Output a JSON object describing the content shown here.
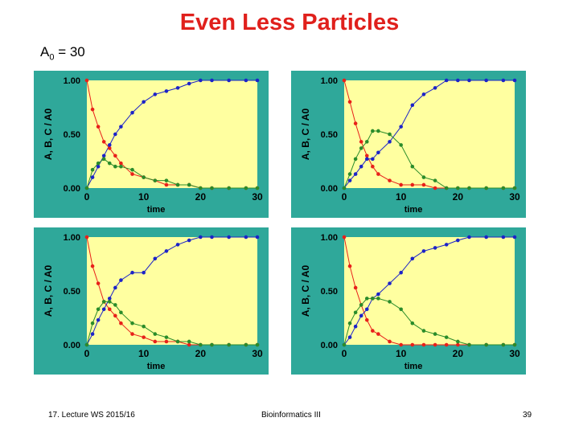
{
  "slide": {
    "title": "Even Less Particles",
    "subtitle_main": "A",
    "subtitle_sub": "0",
    "subtitle_tail": " = 30",
    "footer_left": "17. Lecture WS 2015/16",
    "footer_center": "Bioinformatics III",
    "footer_right": "39"
  },
  "colors": {
    "panel_bg": "#2fa89a",
    "plot_bg": "#ffffa0",
    "A": "#e8201a",
    "B": "#1c23c8",
    "C": "#2a8c2a",
    "axis_text": "#000000"
  },
  "chart_data": [
    {
      "type": "scatter",
      "ylabel": "A, B, C / A0",
      "xlabel": "time",
      "xlim": [
        0,
        30
      ],
      "ylim": [
        0,
        1
      ],
      "x_ticks": [
        "0",
        "10",
        "20",
        "30"
      ],
      "y_ticks": [
        "0.00",
        "0.50",
        "1.00"
      ],
      "series": [
        {
          "name": "A",
          "x": [
            0,
            1,
            2,
            3,
            4,
            5,
            6,
            8,
            10,
            12,
            14,
            16,
            18,
            20,
            22,
            25,
            28,
            30
          ],
          "values": [
            1.0,
            0.73,
            0.57,
            0.43,
            0.37,
            0.3,
            0.23,
            0.13,
            0.1,
            0.07,
            0.03,
            0.03,
            0.03,
            0.0,
            0.0,
            0.0,
            0.0,
            0.0
          ]
        },
        {
          "name": "B",
          "x": [
            0,
            1,
            2,
            3,
            4,
            5,
            6,
            8,
            10,
            12,
            14,
            16,
            18,
            20,
            22,
            25,
            28,
            30
          ],
          "values": [
            0.0,
            0.1,
            0.2,
            0.3,
            0.4,
            0.5,
            0.57,
            0.7,
            0.8,
            0.87,
            0.9,
            0.93,
            0.97,
            1.0,
            1.0,
            1.0,
            1.0,
            1.0
          ]
        },
        {
          "name": "C",
          "x": [
            0,
            1,
            2,
            3,
            4,
            5,
            6,
            8,
            10,
            12,
            14,
            16,
            18,
            20,
            22,
            25,
            28,
            30
          ],
          "values": [
            0.0,
            0.17,
            0.23,
            0.27,
            0.23,
            0.2,
            0.2,
            0.17,
            0.1,
            0.07,
            0.07,
            0.03,
            0.03,
            0.0,
            0.0,
            0.0,
            0.0,
            0.0
          ]
        }
      ],
      "theory_curves": true
    },
    {
      "type": "scatter",
      "ylabel": "A, B, C / A0",
      "xlabel": "time",
      "xlim": [
        0,
        30
      ],
      "ylim": [
        0,
        1
      ],
      "x_ticks": [
        "0",
        "10",
        "20",
        "30"
      ],
      "y_ticks": [
        "0.00",
        "0.50",
        "1.00"
      ],
      "series": [
        {
          "name": "A",
          "x": [
            0,
            1,
            2,
            3,
            4,
            5,
            6,
            8,
            10,
            12,
            14,
            16,
            18,
            20,
            22,
            25,
            28,
            30
          ],
          "values": [
            1.0,
            0.8,
            0.6,
            0.43,
            0.3,
            0.2,
            0.13,
            0.07,
            0.03,
            0.03,
            0.03,
            0.0,
            0.0,
            0.0,
            0.0,
            0.0,
            0.0,
            0.0
          ]
        },
        {
          "name": "B",
          "x": [
            0,
            1,
            2,
            3,
            4,
            5,
            6,
            8,
            10,
            12,
            14,
            16,
            18,
            20,
            22,
            25,
            28,
            30
          ],
          "values": [
            0.0,
            0.07,
            0.13,
            0.2,
            0.27,
            0.27,
            0.33,
            0.43,
            0.57,
            0.77,
            0.87,
            0.93,
            1.0,
            1.0,
            1.0,
            1.0,
            1.0,
            1.0
          ]
        },
        {
          "name": "C",
          "x": [
            0,
            1,
            2,
            3,
            4,
            5,
            6,
            8,
            10,
            12,
            14,
            16,
            18,
            20,
            22,
            25,
            28,
            30
          ],
          "values": [
            0.0,
            0.13,
            0.27,
            0.37,
            0.43,
            0.53,
            0.53,
            0.5,
            0.4,
            0.2,
            0.1,
            0.07,
            0.0,
            0.0,
            0.0,
            0.0,
            0.0,
            0.0
          ]
        }
      ],
      "theory_curves": true
    },
    {
      "type": "scatter",
      "ylabel": "A, B, C / A0",
      "xlabel": "time",
      "xlim": [
        0,
        30
      ],
      "ylim": [
        0,
        1
      ],
      "x_ticks": [
        "0",
        "10",
        "20",
        "30"
      ],
      "y_ticks": [
        "0.00",
        "0.50",
        "1.00"
      ],
      "series": [
        {
          "name": "A",
          "x": [
            0,
            1,
            2,
            3,
            4,
            5,
            6,
            8,
            10,
            12,
            14,
            16,
            18,
            20,
            22,
            25,
            28,
            30
          ],
          "values": [
            1.0,
            0.73,
            0.57,
            0.4,
            0.33,
            0.27,
            0.2,
            0.1,
            0.07,
            0.03,
            0.03,
            0.03,
            0.0,
            0.0,
            0.0,
            0.0,
            0.0,
            0.0
          ]
        },
        {
          "name": "B",
          "x": [
            0,
            1,
            2,
            3,
            4,
            5,
            6,
            8,
            10,
            12,
            14,
            16,
            18,
            20,
            22,
            25,
            28,
            30
          ],
          "values": [
            0.0,
            0.1,
            0.23,
            0.33,
            0.43,
            0.53,
            0.6,
            0.67,
            0.67,
            0.8,
            0.87,
            0.93,
            0.97,
            1.0,
            1.0,
            1.0,
            1.0,
            1.0
          ]
        },
        {
          "name": "C",
          "x": [
            0,
            1,
            2,
            3,
            4,
            5,
            6,
            8,
            10,
            12,
            14,
            16,
            18,
            20,
            22,
            25,
            28,
            30
          ],
          "values": [
            0.0,
            0.2,
            0.33,
            0.4,
            0.4,
            0.37,
            0.3,
            0.2,
            0.17,
            0.1,
            0.07,
            0.03,
            0.03,
            0.0,
            0.0,
            0.0,
            0.0,
            0.0
          ]
        }
      ],
      "theory_curves": true
    },
    {
      "type": "scatter",
      "ylabel": "A, B, C / A0",
      "xlabel": "time",
      "xlim": [
        0,
        30
      ],
      "ylim": [
        0,
        1
      ],
      "x_ticks": [
        "0",
        "10",
        "20",
        "30"
      ],
      "y_ticks": [
        "0.00",
        "0.50",
        "1.00"
      ],
      "series": [
        {
          "name": "A",
          "x": [
            0,
            1,
            2,
            3,
            4,
            5,
            6,
            8,
            10,
            12,
            14,
            16,
            18,
            20,
            22,
            25,
            28,
            30
          ],
          "values": [
            1.0,
            0.73,
            0.53,
            0.37,
            0.23,
            0.13,
            0.1,
            0.03,
            0.0,
            0.0,
            0.0,
            0.0,
            0.0,
            0.0,
            0.0,
            0.0,
            0.0,
            0.0
          ]
        },
        {
          "name": "B",
          "x": [
            0,
            1,
            2,
            3,
            4,
            5,
            6,
            8,
            10,
            12,
            14,
            16,
            18,
            20,
            22,
            25,
            28,
            30
          ],
          "values": [
            0.0,
            0.07,
            0.17,
            0.27,
            0.33,
            0.43,
            0.47,
            0.57,
            0.67,
            0.8,
            0.87,
            0.9,
            0.93,
            0.97,
            1.0,
            1.0,
            1.0,
            1.0
          ]
        },
        {
          "name": "C",
          "x": [
            0,
            1,
            2,
            3,
            4,
            5,
            6,
            8,
            10,
            12,
            14,
            16,
            18,
            20,
            22,
            25,
            28,
            30
          ],
          "values": [
            0.0,
            0.2,
            0.3,
            0.37,
            0.43,
            0.43,
            0.43,
            0.4,
            0.33,
            0.2,
            0.13,
            0.1,
            0.07,
            0.03,
            0.0,
            0.0,
            0.0,
            0.0
          ]
        }
      ],
      "theory_curves": true
    }
  ]
}
